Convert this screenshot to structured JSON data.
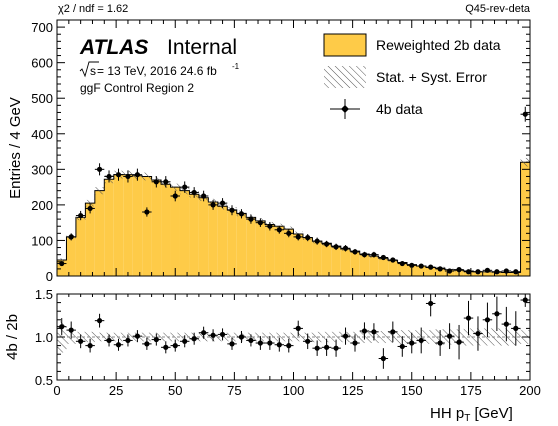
{
  "header": {
    "chi2": "χ2 / ndf = 1.62",
    "tag": "Q45-rev-deta"
  },
  "labels": {
    "atlas": "ATLAS",
    "internal": "Internal",
    "sqrt_s": "s",
    "energy": " = 13 TeV, 2016 24.6 fb",
    "lumi_exp": "-1",
    "region": "ggF Control Region 2"
  },
  "legend": {
    "reweighted": "Reweighted 2b data",
    "error": "Stat. + Syst. Error",
    "data": "4b data"
  },
  "colors": {
    "fill": "#fecb48",
    "line": "#000000",
    "hatch": "#555555"
  },
  "chart_data": [
    {
      "type": "bar",
      "panel": "main",
      "ylabel": "Entries / 4 GeV",
      "xlim": [
        0,
        200
      ],
      "ylim": [
        0,
        720
      ],
      "xticks": [
        0,
        25,
        50,
        75,
        100,
        125,
        150,
        175,
        200
      ],
      "xtick_labels": [
        "0",
        "25",
        "50",
        "75",
        "100",
        "125",
        "150",
        "175",
        "200"
      ],
      "yticks": [
        0,
        100,
        200,
        300,
        400,
        500,
        600,
        700
      ],
      "ytick_labels": [
        "0",
        "100",
        "200",
        "300",
        "400",
        "500",
        "600",
        "700"
      ],
      "bin_edges": [
        0,
        4,
        8,
        12,
        16,
        20,
        24,
        28,
        32,
        36,
        40,
        44,
        48,
        52,
        56,
        60,
        64,
        68,
        72,
        76,
        80,
        84,
        88,
        92,
        96,
        100,
        104,
        108,
        112,
        116,
        120,
        124,
        128,
        132,
        136,
        140,
        144,
        148,
        152,
        156,
        160,
        164,
        168,
        172,
        176,
        180,
        184,
        188,
        192,
        196,
        200
      ],
      "series": [
        {
          "name": "Reweighted 2b data",
          "values": [
            45,
            110,
            165,
            205,
            240,
            272,
            285,
            285,
            282,
            280,
            270,
            258,
            250,
            240,
            230,
            220,
            208,
            196,
            186,
            176,
            165,
            155,
            145,
            140,
            132,
            118,
            108,
            98,
            92,
            84,
            76,
            70,
            62,
            56,
            50,
            44,
            38,
            32,
            28,
            24,
            22,
            18,
            16,
            14,
            12,
            12,
            11,
            10,
            10,
            320
          ],
          "error": [
            5,
            8,
            8,
            9,
            10,
            11,
            11,
            11,
            11,
            11,
            10,
            10,
            10,
            10,
            9,
            9,
            9,
            9,
            8,
            8,
            8,
            8,
            7,
            7,
            7,
            7,
            6,
            6,
            6,
            6,
            5,
            5,
            5,
            5,
            5,
            4,
            4,
            4,
            4,
            4,
            4,
            3,
            3,
            3,
            3,
            3,
            3,
            3,
            3,
            12
          ]
        },
        {
          "name": "4b data",
          "x": [
            2,
            6,
            10,
            14,
            18,
            22,
            26,
            30,
            34,
            38,
            42,
            46,
            50,
            54,
            58,
            62,
            66,
            70,
            74,
            78,
            82,
            86,
            90,
            94,
            98,
            102,
            106,
            110,
            114,
            118,
            122,
            126,
            130,
            134,
            138,
            142,
            146,
            150,
            154,
            158,
            162,
            166,
            170,
            174,
            178,
            182,
            186,
            190,
            194,
            198
          ],
          "values": [
            35,
            110,
            170,
            190,
            300,
            280,
            285,
            280,
            285,
            180,
            265,
            265,
            225,
            250,
            235,
            225,
            200,
            205,
            185,
            175,
            160,
            150,
            140,
            130,
            120,
            110,
            108,
            98,
            90,
            82,
            78,
            68,
            60,
            60,
            52,
            45,
            35,
            30,
            28,
            25,
            20,
            14,
            18,
            12,
            12,
            16,
            12,
            14,
            12,
            455
          ],
          "error": [
            6,
            10,
            13,
            14,
            17,
            17,
            17,
            17,
            17,
            13,
            16,
            16,
            15,
            16,
            15,
            15,
            14,
            14,
            14,
            13,
            13,
            12,
            12,
            11,
            11,
            10,
            10,
            10,
            9,
            9,
            9,
            8,
            8,
            8,
            7,
            7,
            6,
            5,
            5,
            5,
            4,
            4,
            4,
            3,
            3,
            4,
            3,
            4,
            3,
            21
          ]
        }
      ]
    },
    {
      "type": "scatter",
      "panel": "ratio",
      "xlabel": "HH p",
      "xlabel_sub": "T",
      "xlabel_unit": " [GeV]",
      "ylabel": "4b / 2b",
      "xlim": [
        0,
        200
      ],
      "ylim": [
        0.5,
        1.5
      ],
      "yticks": [
        0.5,
        1.0,
        1.5
      ],
      "ytick_labels": [
        "0.5",
        "1.0",
        "1.5"
      ],
      "band_halfwidth": [
        0.18,
        0.08,
        0.06,
        0.06,
        0.05,
        0.05,
        0.05,
        0.05,
        0.05,
        0.05,
        0.05,
        0.05,
        0.05,
        0.05,
        0.05,
        0.05,
        0.05,
        0.05,
        0.05,
        0.05,
        0.05,
        0.05,
        0.05,
        0.05,
        0.05,
        0.05,
        0.05,
        0.06,
        0.06,
        0.06,
        0.06,
        0.06,
        0.07,
        0.07,
        0.07,
        0.07,
        0.08,
        0.08,
        0.08,
        0.08,
        0.09,
        0.09,
        0.09,
        0.1,
        0.1,
        0.1,
        0.1,
        0.1,
        0.1,
        0.08
      ],
      "x": [
        2,
        6,
        10,
        14,
        18,
        22,
        26,
        30,
        34,
        38,
        42,
        46,
        50,
        54,
        58,
        62,
        66,
        70,
        74,
        78,
        82,
        86,
        90,
        94,
        98,
        102,
        106,
        110,
        114,
        118,
        122,
        126,
        130,
        134,
        138,
        142,
        146,
        150,
        154,
        158,
        162,
        166,
        170,
        174,
        178,
        182,
        186,
        190,
        194,
        198
      ],
      "values": [
        1.12,
        1.08,
        0.95,
        0.9,
        1.19,
        0.96,
        0.91,
        0.96,
        1.01,
        0.92,
        0.97,
        0.88,
        0.9,
        0.95,
        0.98,
        1.05,
        1.02,
        1.03,
        0.92,
        1.0,
        0.96,
        0.93,
        0.93,
        0.91,
        0.9,
        1.1,
        0.95,
        0.87,
        0.88,
        0.87,
        1.01,
        0.93,
        1.07,
        1.06,
        0.75,
        1.06,
        0.89,
        0.93,
        0.96,
        1.39,
        0.93,
        1.01,
        0.94,
        1.22,
        1.04,
        1.2,
        1.27,
        1.15,
        1.1,
        1.43
      ],
      "error": [
        0.1,
        0.1,
        0.08,
        0.08,
        0.08,
        0.07,
        0.07,
        0.07,
        0.07,
        0.07,
        0.07,
        0.07,
        0.07,
        0.07,
        0.07,
        0.07,
        0.07,
        0.07,
        0.07,
        0.07,
        0.07,
        0.08,
        0.08,
        0.08,
        0.08,
        0.09,
        0.09,
        0.09,
        0.1,
        0.1,
        0.1,
        0.1,
        0.1,
        0.1,
        0.12,
        0.12,
        0.12,
        0.12,
        0.15,
        0.15,
        0.15,
        0.15,
        0.2,
        0.2,
        0.2,
        0.2,
        0.2,
        0.2,
        0.2,
        0.08
      ]
    }
  ]
}
